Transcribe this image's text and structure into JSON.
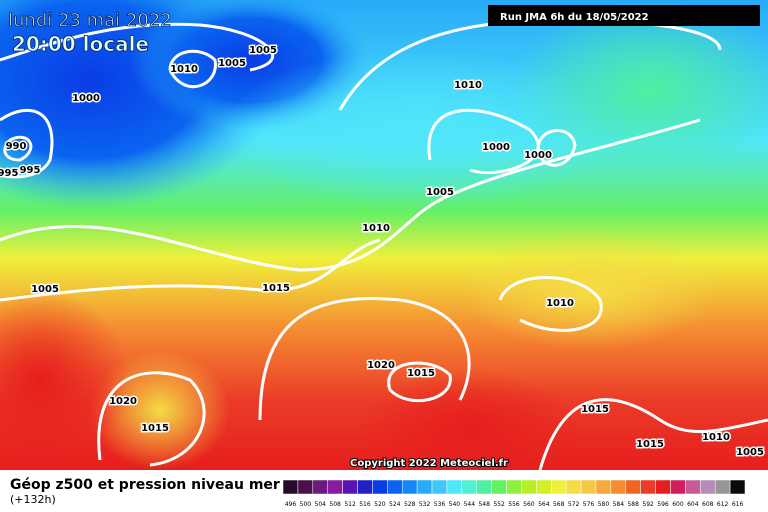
{
  "header": {
    "date": "lundi 23 mai 2022",
    "time": "20:00 locale",
    "run": "Run JMA 6h du 18/05/2022"
  },
  "isobars": [
    1005,
    1010,
    1005,
    1000,
    990,
    995,
    995,
    1010,
    1000,
    1000,
    1005,
    1010,
    1005,
    1015,
    1010,
    1020,
    1015,
    1020,
    1015,
    1015,
    1015,
    1010,
    1005
  ],
  "copyright": "Copyright 2022 Meteociel.fr",
  "footer": {
    "title": "Géop z500 et pression niveau mer",
    "lead": "(+132h)"
  },
  "scale": {
    "labels": [
      496,
      500,
      504,
      508,
      512,
      516,
      520,
      524,
      528,
      532,
      536,
      540,
      544,
      548,
      552,
      556,
      560,
      564,
      568,
      572,
      576,
      580,
      584,
      588,
      592,
      596,
      600,
      604,
      608,
      612,
      616
    ],
    "colors": [
      "#2a0a2a",
      "#4b0f4b",
      "#6a1a7a",
      "#8a1aa0",
      "#5a14b4",
      "#2020c8",
      "#0a3ce6",
      "#0a64f0",
      "#1488f5",
      "#28aaf8",
      "#3cc8fa",
      "#50e6fa",
      "#50f0d2",
      "#50f0a0",
      "#64f064",
      "#8cf03c",
      "#b4f028",
      "#d2f028",
      "#f0f03c",
      "#f5dc46",
      "#f5c846",
      "#f5aa3c",
      "#f58c32",
      "#f06428",
      "#eb3c28",
      "#e61e1e",
      "#d21e5a",
      "#c85a96",
      "#b48cb4",
      "#969696",
      "#0a0a0a"
    ]
  }
}
